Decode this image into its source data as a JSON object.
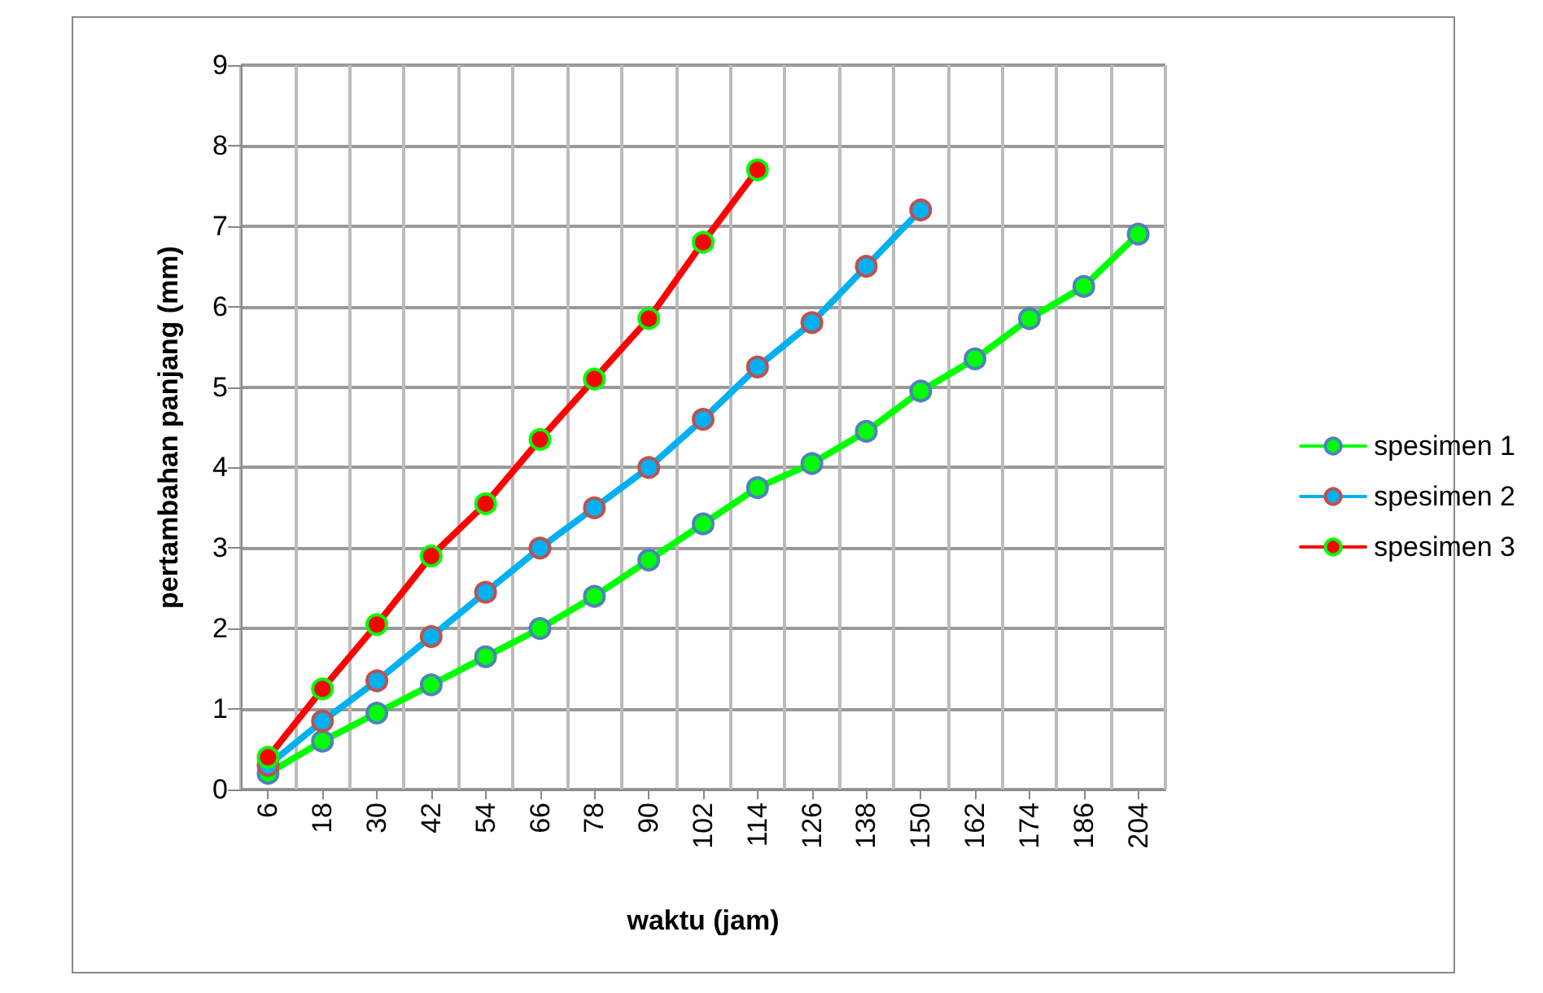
{
  "chart_data": {
    "type": "line",
    "xlabel": "waktu (jam)",
    "ylabel": "pertambahan panjang (mm)",
    "categories": [
      "6",
      "18",
      "30",
      "42",
      "54",
      "66",
      "78",
      "90",
      "102",
      "114",
      "126",
      "138",
      "150",
      "162",
      "174",
      "186",
      "204"
    ],
    "series": [
      {
        "name": "spesimen 1",
        "color": "#00ff00",
        "values": [
          0.2,
          0.6,
          0.95,
          1.3,
          1.65,
          2.0,
          2.4,
          2.85,
          3.3,
          3.75,
          4.05,
          4.45,
          4.95,
          5.35,
          5.85,
          6.25,
          6.9
        ]
      },
      {
        "name": "spesimen 2",
        "color": "#00b0f0",
        "values": [
          0.3,
          0.85,
          1.35,
          1.9,
          2.45,
          3.0,
          3.5,
          4.0,
          4.6,
          5.25,
          5.8,
          6.5,
          7.2,
          null,
          null,
          null,
          null
        ]
      },
      {
        "name": "spesimen 3",
        "color": "#ff0000",
        "values": [
          0.4,
          1.25,
          2.05,
          2.9,
          3.55,
          4.35,
          5.1,
          5.85,
          6.8,
          7.7,
          null,
          null,
          null,
          null,
          null,
          null,
          null
        ]
      }
    ],
    "ylim": [
      0,
      9
    ],
    "yticks": [
      0,
      1,
      2,
      3,
      4,
      5,
      6,
      7,
      8,
      9
    ],
    "grid": true,
    "legend": "right",
    "marker": "circle",
    "line_style": "solid"
  }
}
